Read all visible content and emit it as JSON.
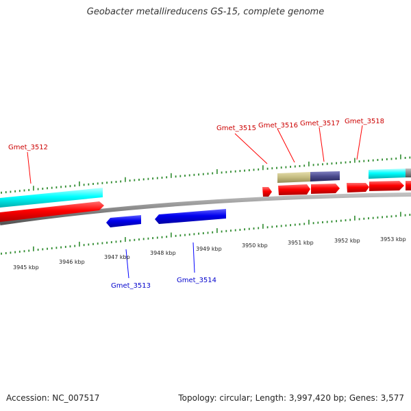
{
  "title": "Geobacter metallireducens GS-15, complete genome",
  "footer": {
    "accession": "Accession: NC_007517",
    "topology": "Topology: circular; Length: 3,997,420 bp; Genes: 3,577"
  },
  "colors": {
    "forward_cds": "#ff0000",
    "reverse_cds": "#0000ff",
    "forward_label": "#cc0000",
    "reverse_label": "#0000cc",
    "feature_cyan": "#00ffff",
    "feature_khaki": "#c8c080",
    "feature_slate": "#505090",
    "backbone": "#888888",
    "ticks": "#2e8b2e"
  },
  "scale_labels": [
    "3945 kbp",
    "3946 kbp",
    "3947 kbp",
    "3948 kbp",
    "3949 kbp",
    "3950 kbp",
    "3951 kbp",
    "3952 kbp",
    "3953 kbp"
  ],
  "forward_genes": [
    "Gmet_3512",
    "Gmet_3515",
    "Gmet_3516",
    "Gmet_3517",
    "Gmet_3518"
  ],
  "reverse_genes": [
    "Gmet_3513",
    "Gmet_3514"
  ]
}
